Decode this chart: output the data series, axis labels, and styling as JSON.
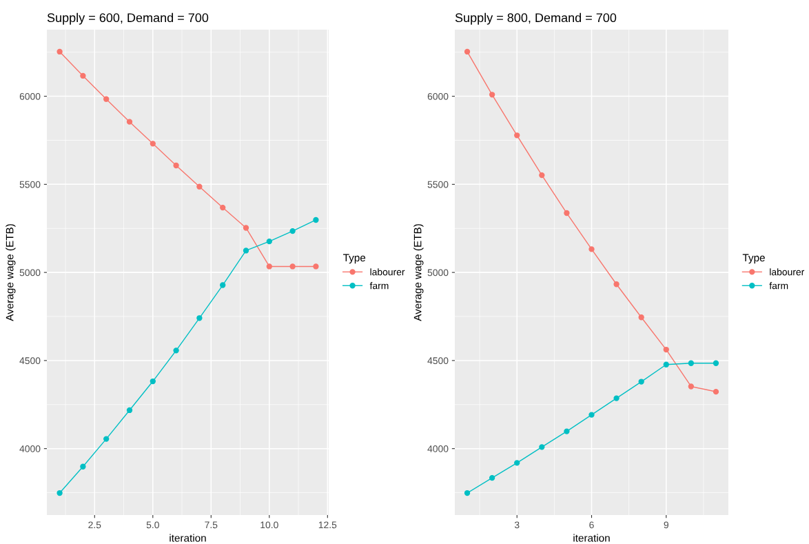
{
  "chart_data": [
    {
      "type": "line",
      "title": "Supply = 600, Demand = 700",
      "xlabel": "iteration",
      "ylabel": "Average wage (ETB)",
      "legend_title": "Type",
      "legend": "right",
      "grid": true,
      "marker": "circle",
      "x": [
        1,
        2,
        3,
        4,
        5,
        6,
        7,
        8,
        9,
        10,
        11,
        12
      ],
      "series": [
        {
          "name": "labourer",
          "color": "#f8766d",
          "values": [
            6253,
            6116,
            5984,
            5855,
            5731,
            5607,
            5487,
            5368,
            5253,
            5034,
            5034,
            5034
          ]
        },
        {
          "name": "farm",
          "color": "#00bfc4",
          "values": [
            3748,
            3898,
            4055,
            4218,
            4382,
            4557,
            4741,
            4928,
            5124,
            5176,
            5235,
            5298
          ]
        }
      ],
      "xlim": [
        0.45,
        12.55
      ],
      "xticks": [
        {
          "value": 2.5,
          "label": "2.5"
        },
        {
          "value": 5,
          "label": "5.0"
        },
        {
          "value": 7.5,
          "label": "7.5"
        },
        {
          "value": 10,
          "label": "10.0"
        },
        {
          "value": 12.5,
          "label": "12.5"
        }
      ],
      "ylim": [
        3623,
        6378
      ],
      "yticks": [
        4000,
        4500,
        5000,
        5500,
        6000
      ]
    },
    {
      "type": "line",
      "title": "Supply = 800, Demand = 700",
      "xlabel": "iteration",
      "ylabel": "Average wage (ETB)",
      "legend_title": "Type",
      "legend": "right",
      "grid": true,
      "marker": "circle",
      "x": [
        1,
        2,
        3,
        4,
        5,
        6,
        7,
        8,
        9,
        10,
        11
      ],
      "series": [
        {
          "name": "labourer",
          "color": "#f8766d",
          "values": [
            6253,
            6009,
            5778,
            5552,
            5337,
            5132,
            4933,
            4745,
            4562,
            4353,
            4323
          ]
        },
        {
          "name": "farm",
          "color": "#00bfc4",
          "values": [
            3748,
            3834,
            3919,
            4009,
            4098,
            4192,
            4286,
            4380,
            4477,
            4485,
            4485
          ]
        }
      ],
      "xlim": [
        0.5,
        11.5
      ],
      "xticks": [
        3,
        6,
        9
      ],
      "ylim": [
        3623,
        6378
      ],
      "yticks": [
        4000,
        4500,
        5000,
        5500,
        6000
      ]
    }
  ]
}
